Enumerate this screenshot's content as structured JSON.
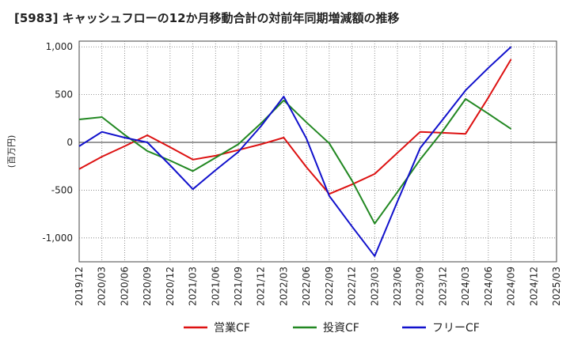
{
  "chart_data": {
    "type": "line",
    "title": "[5983]  キャッシュフローの12か月移動合計の対前年同期増減額の推移",
    "ylabel": "(百万円)",
    "xlabel": "",
    "ylim": [
      -1250,
      1060
    ],
    "grid": true,
    "legend_position": "bottom",
    "x": [
      "2019/12",
      "2020/03",
      "2020/06",
      "2020/09",
      "2020/12",
      "2021/03",
      "2021/06",
      "2021/09",
      "2021/12",
      "2022/03",
      "2022/06",
      "2022/09",
      "2022/12",
      "2023/03",
      "2023/06",
      "2023/09",
      "2023/12",
      "2024/03",
      "2024/06",
      "2024/09",
      "2024/12",
      "2025/03"
    ],
    "yticks": [
      {
        "value": 1000,
        "label": "1,000"
      },
      {
        "value": 500,
        "label": "500"
      },
      {
        "value": 0,
        "label": "0"
      },
      {
        "value": -500,
        "label": "-500"
      },
      {
        "value": -1000,
        "label": "-1,000"
      }
    ],
    "series": [
      {
        "name": "営業CF",
        "color": "#dd1111",
        "values": [
          -280,
          -150,
          -40,
          75,
          -50,
          -180,
          -140,
          -80,
          -20,
          50,
          -260,
          -540,
          -440,
          -330,
          null,
          110,
          100,
          90,
          470,
          870,
          null,
          null
        ]
      },
      {
        "name": "投資CF",
        "color": "#228822",
        "values": [
          240,
          265,
          80,
          -90,
          -190,
          -300,
          -160,
          -20,
          200,
          440,
          210,
          -10,
          -400,
          -850,
          -520,
          -180,
          120,
          455,
          300,
          140,
          null,
          null
        ]
      },
      {
        "name": "フリーCF",
        "color": "#1111cc",
        "values": [
          -40,
          110,
          50,
          0,
          -240,
          -490,
          -290,
          -100,
          170,
          480,
          40,
          -560,
          -880,
          -1190,
          -620,
          -60,
          240,
          545,
          780,
          1000,
          null,
          null
        ]
      }
    ]
  }
}
